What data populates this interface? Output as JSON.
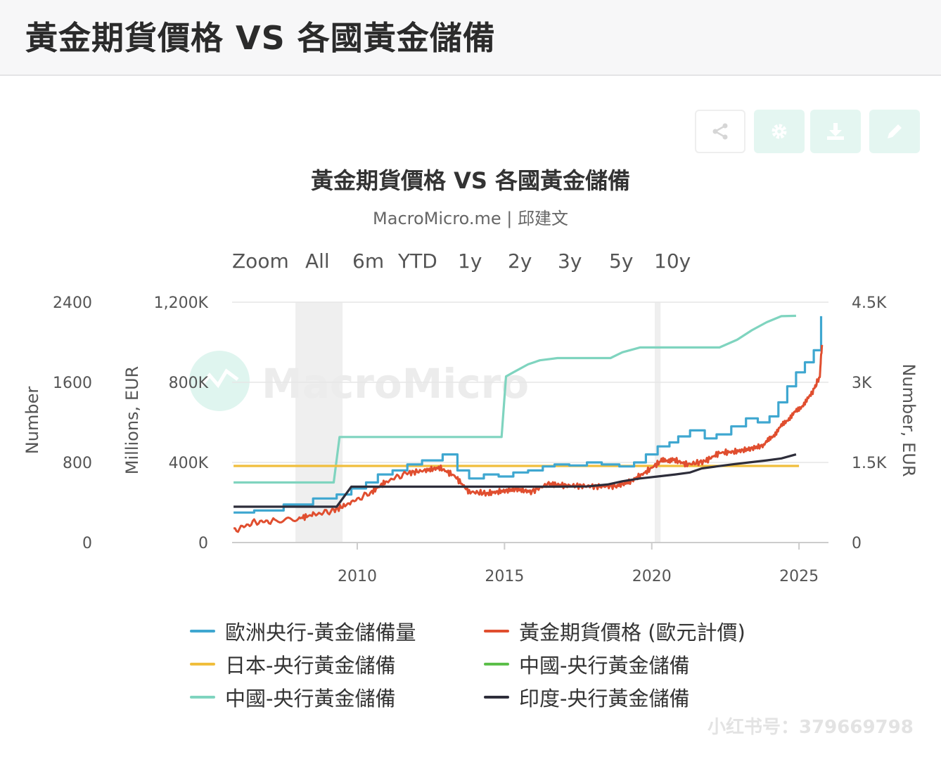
{
  "header": {
    "title": "黃金期貨價格 VS 各國黃金儲備"
  },
  "toolbar": {
    "buttons": [
      {
        "name": "share",
        "icon": "share-icon"
      },
      {
        "name": "settings",
        "icon": "gear-icon"
      },
      {
        "name": "download",
        "icon": "download-icon"
      },
      {
        "name": "edit",
        "icon": "pencil-icon"
      }
    ],
    "accent_color": "#7fd4bf"
  },
  "zoom": {
    "label": "Zoom",
    "options": [
      "All",
      "6m",
      "YTD",
      "1y",
      "2y",
      "3y",
      "5y",
      "10y"
    ]
  },
  "watermark": {
    "brand_text": "MacroMicro"
  },
  "footer_note": "小红书号：379669798",
  "chart_data": {
    "type": "line",
    "title": "黃金期貨價格 VS 各國黃金儲備",
    "subtitle": "MacroMicro.me | 邱建文",
    "x_range": [
      2005.75,
      2026.0
    ],
    "x_ticks": [
      "2010",
      "2015",
      "2020",
      "2025"
    ],
    "grid": true,
    "legend_position": "bottom",
    "recession_shading": [
      [
        2007.9,
        2009.5
      ],
      [
        2020.1,
        2020.3
      ]
    ],
    "axes": {
      "left_outer": {
        "label": "Number",
        "range": [
          0,
          2400
        ],
        "ticks": [
          "0",
          "800",
          "1600",
          "2400"
        ]
      },
      "left_inner": {
        "label": "Millions, EUR",
        "range": [
          0,
          1200000
        ],
        "ticks": [
          "0",
          "400K",
          "800K",
          "1,200K"
        ]
      },
      "right": {
        "label": "Number, EUR",
        "range": [
          0,
          4500
        ],
        "ticks": [
          "0",
          "1.5K",
          "3K",
          "4.5K"
        ]
      }
    },
    "series": [
      {
        "name": "歐洲央行-黃金儲備量",
        "color": "#3fa7d0",
        "axis": "left_inner",
        "x": [
          2005.8,
          2006.5,
          2007.5,
          2008.5,
          2009.3,
          2009.8,
          2010.3,
          2010.7,
          2011.2,
          2011.7,
          2012.2,
          2012.9,
          2013.4,
          2013.8,
          2014.3,
          2014.8,
          2015.3,
          2015.8,
          2016.3,
          2016.7,
          2017.2,
          2017.8,
          2018.3,
          2018.9,
          2019.4,
          2019.8,
          2020.2,
          2020.6,
          2020.9,
          2021.3,
          2021.8,
          2022.2,
          2022.7,
          2023.2,
          2023.6,
          2024.0,
          2024.3,
          2024.6,
          2024.9,
          2025.2,
          2025.5,
          2025.75
        ],
        "y": [
          150000,
          160000,
          190000,
          220000,
          240000,
          270000,
          300000,
          340000,
          360000,
          390000,
          410000,
          440000,
          360000,
          320000,
          340000,
          330000,
          350000,
          360000,
          380000,
          390000,
          385000,
          400000,
          390000,
          380000,
          400000,
          440000,
          480000,
          500000,
          530000,
          560000,
          520000,
          540000,
          580000,
          620000,
          600000,
          630000,
          700000,
          780000,
          850000,
          900000,
          960000,
          1130000
        ]
      },
      {
        "name": "黃金期貨價格 (歐元計價)",
        "color": "#e04e2f",
        "axis": "right",
        "x": [
          2005.8,
          2006.5,
          2007.2,
          2008.0,
          2008.5,
          2009.2,
          2009.8,
          2010.5,
          2011.0,
          2011.7,
          2012.3,
          2012.8,
          2013.3,
          2013.8,
          2014.4,
          2014.9,
          2015.4,
          2015.9,
          2016.5,
          2017.0,
          2017.6,
          2018.2,
          2018.8,
          2019.3,
          2019.8,
          2020.3,
          2020.7,
          2021.2,
          2021.8,
          2022.3,
          2022.8,
          2023.3,
          2023.8,
          2024.2,
          2024.6,
          2025.0,
          2025.4,
          2025.7,
          2025.78
        ],
        "y": [
          220,
          380,
          400,
          450,
          520,
          600,
          750,
          950,
          1150,
          1300,
          1350,
          1400,
          1250,
          950,
          920,
          960,
          1000,
          950,
          1100,
          1070,
          1060,
          1050,
          1060,
          1150,
          1320,
          1520,
          1560,
          1460,
          1520,
          1680,
          1700,
          1750,
          1820,
          2050,
          2300,
          2500,
          2750,
          3100,
          3700
        ]
      },
      {
        "name": "日本-央行黃金儲備",
        "color": "#f0be3c",
        "axis": "left_outer",
        "x": [
          2005.8,
          2025.0
        ],
        "y": [
          765,
          765
        ]
      },
      {
        "name": "中國-央行黃金儲備",
        "color": "#5cbf4a",
        "axis": "left_outer",
        "x": [],
        "y": []
      },
      {
        "name": "中國-央行黃金儲備",
        "color": "#7fd4bf",
        "axis": "left_outer",
        "x": [
          2005.8,
          2009.2,
          2009.4,
          2014.9,
          2015.05,
          2015.3,
          2015.8,
          2016.2,
          2016.8,
          2018.6,
          2019.0,
          2019.6,
          2022.3,
          2022.9,
          2023.4,
          2023.9,
          2024.4,
          2024.9
        ],
        "y": [
          600,
          600,
          1054,
          1054,
          1658,
          1700,
          1780,
          1820,
          1842,
          1842,
          1900,
          1948,
          1948,
          2025,
          2120,
          2200,
          2260,
          2264
        ]
      },
      {
        "name": "印度-央行黃金儲備",
        "color": "#2d2d3a",
        "axis": "left_outer",
        "x": [
          2005.8,
          2009.3,
          2009.8,
          2016.5,
          2017.8,
          2018.5,
          2019.0,
          2019.6,
          2020.2,
          2020.8,
          2021.3,
          2021.7,
          2022.2,
          2022.7,
          2023.3,
          2023.9,
          2024.4,
          2024.9
        ],
        "y": [
          358,
          358,
          558,
          558,
          560,
          580,
          612,
          640,
          660,
          680,
          700,
          740,
          760,
          780,
          800,
          820,
          840,
          880
        ]
      }
    ]
  }
}
